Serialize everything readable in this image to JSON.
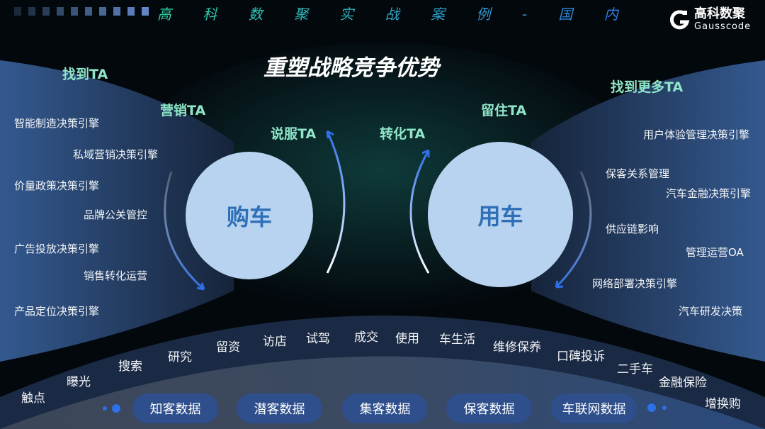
{
  "header": {
    "series_title": "高 科 数 聚 实 战 案 例 - 国 内",
    "logo_name": "高科数聚",
    "logo_sub": "Gausscode"
  },
  "title": "重塑战略竞争优势",
  "ta_labels": {
    "find": "找到TA",
    "market": "营销TA",
    "persuade": "说服TA",
    "convert": "转化TA",
    "retain": "留住TA",
    "find_more": "找到更多TA"
  },
  "circles": {
    "buy": "购车",
    "use": "用车"
  },
  "left_items": [
    "智能制造决策引擎",
    "私域营销决策引擎",
    "价量政策决策引擎",
    "品牌公关管控",
    "广告投放决策引擎",
    "销售转化运营",
    "产品定位决策引擎"
  ],
  "right_items": [
    "用户体验管理决策引擎",
    "保客关系管理",
    "汽车金融决策引擎",
    "供应链影响",
    "管理运营OA",
    "网络部署决策引擎",
    "汽车研发决策"
  ],
  "journey": [
    "触点",
    "曝光",
    "搜索",
    "研究",
    "留资",
    "访店",
    "试驾",
    "成交",
    "使用",
    "车生活",
    "维修保养",
    "口碑投诉",
    "二手车",
    "金融保险",
    "增换购"
  ],
  "data_pills": [
    "知客数据",
    "潜客数据",
    "集客数据",
    "保客数据",
    "车联网数据"
  ],
  "colors": {
    "accent_blue": "#2f6fe8",
    "ta_green": "#8fe6c8",
    "circle": "#b7d3ef",
    "pill": "#2e4f8c"
  }
}
